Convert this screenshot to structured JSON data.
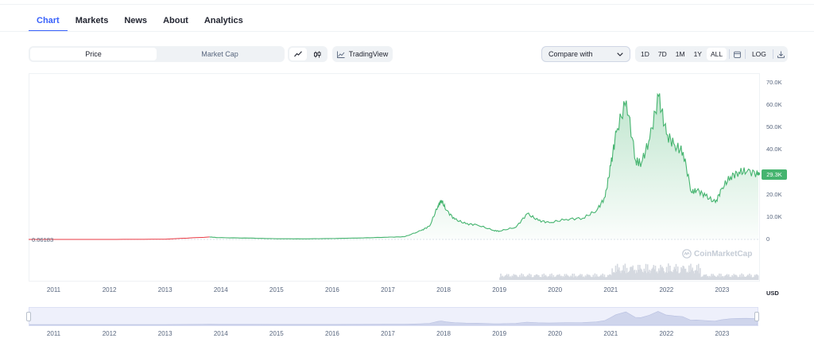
{
  "tabs": [
    {
      "label": "Chart",
      "active": true
    },
    {
      "label": "Markets",
      "active": false
    },
    {
      "label": "News",
      "active": false
    },
    {
      "label": "About",
      "active": false
    },
    {
      "label": "Analytics",
      "active": false
    }
  ],
  "toggle": {
    "price_label": "Price",
    "marketcap_label": "Market Cap",
    "selected": "Price"
  },
  "chart_type": {
    "line_icon": "line-chart-icon",
    "candle_icon": "candlestick-icon",
    "selected": "line"
  },
  "tradingview_label": "TradingView",
  "compare": {
    "placeholder": "Compare with"
  },
  "ranges": [
    {
      "label": "1D",
      "active": false
    },
    {
      "label": "7D",
      "active": false
    },
    {
      "label": "1M",
      "active": false
    },
    {
      "label": "1Y",
      "active": false
    },
    {
      "label": "ALL",
      "active": true
    }
  ],
  "log_label": "LOG",
  "currency_label": "USD",
  "watermark_text": "CoinMarketCap",
  "min_price_label": "0.06183",
  "current_price_label": "29.3K",
  "colors": {
    "accent": "#3861fb",
    "line": "#45b46f",
    "early_line": "#ea3943"
  },
  "chart_data": {
    "type": "area",
    "x": [
      2010.55,
      2011,
      2012,
      2013,
      2013.8,
      2013.95,
      2014.5,
      2015,
      2015.5,
      2016,
      2016.5,
      2017,
      2017.3,
      2017.6,
      2017.75,
      2017.9,
      2017.96,
      2018.05,
      2018.2,
      2018.4,
      2018.6,
      2018.9,
      2019,
      2019.3,
      2019.5,
      2019.7,
      2019.9,
      2020.2,
      2020.5,
      2020.75,
      2020.9,
      2021.0,
      2021.1,
      2021.28,
      2021.45,
      2021.55,
      2021.7,
      2021.86,
      2022.0,
      2022.15,
      2022.3,
      2022.45,
      2022.55,
      2022.7,
      2022.88,
      2023.0,
      2023.15,
      2023.3,
      2023.45,
      2023.65
    ],
    "y": [
      0.06183,
      5,
      10,
      100,
      1100,
      800,
      600,
      300,
      250,
      400,
      650,
      1000,
      1200,
      4000,
      6000,
      15000,
      17500,
      13000,
      9000,
      7000,
      6500,
      4000,
      3700,
      5500,
      11500,
      8500,
      7500,
      9000,
      9500,
      13000,
      19000,
      33000,
      48000,
      62000,
      35000,
      34000,
      45000,
      64000,
      47000,
      42000,
      39000,
      21000,
      22000,
      19500,
      16500,
      23000,
      28000,
      30000,
      30500,
      29300
    ],
    "yticks": [
      "70.0K",
      "60.0K",
      "50.0K",
      "40.0K",
      "30.0K",
      "20.0K",
      "10.0K",
      "0"
    ],
    "ytick_values": [
      70000,
      60000,
      50000,
      40000,
      30000,
      20000,
      10000,
      0
    ],
    "xticks": [
      "2011",
      "2012",
      "2013",
      "2014",
      "2015",
      "2016",
      "2017",
      "2018",
      "2019",
      "2020",
      "2021",
      "2022",
      "2023"
    ],
    "xtick_values": [
      2011,
      2012,
      2013,
      2014,
      2015,
      2016,
      2017,
      2018,
      2019,
      2020,
      2021,
      2022,
      2023
    ],
    "xlim": [
      2010.55,
      2023.65
    ],
    "ylim": [
      0,
      70000
    ]
  }
}
